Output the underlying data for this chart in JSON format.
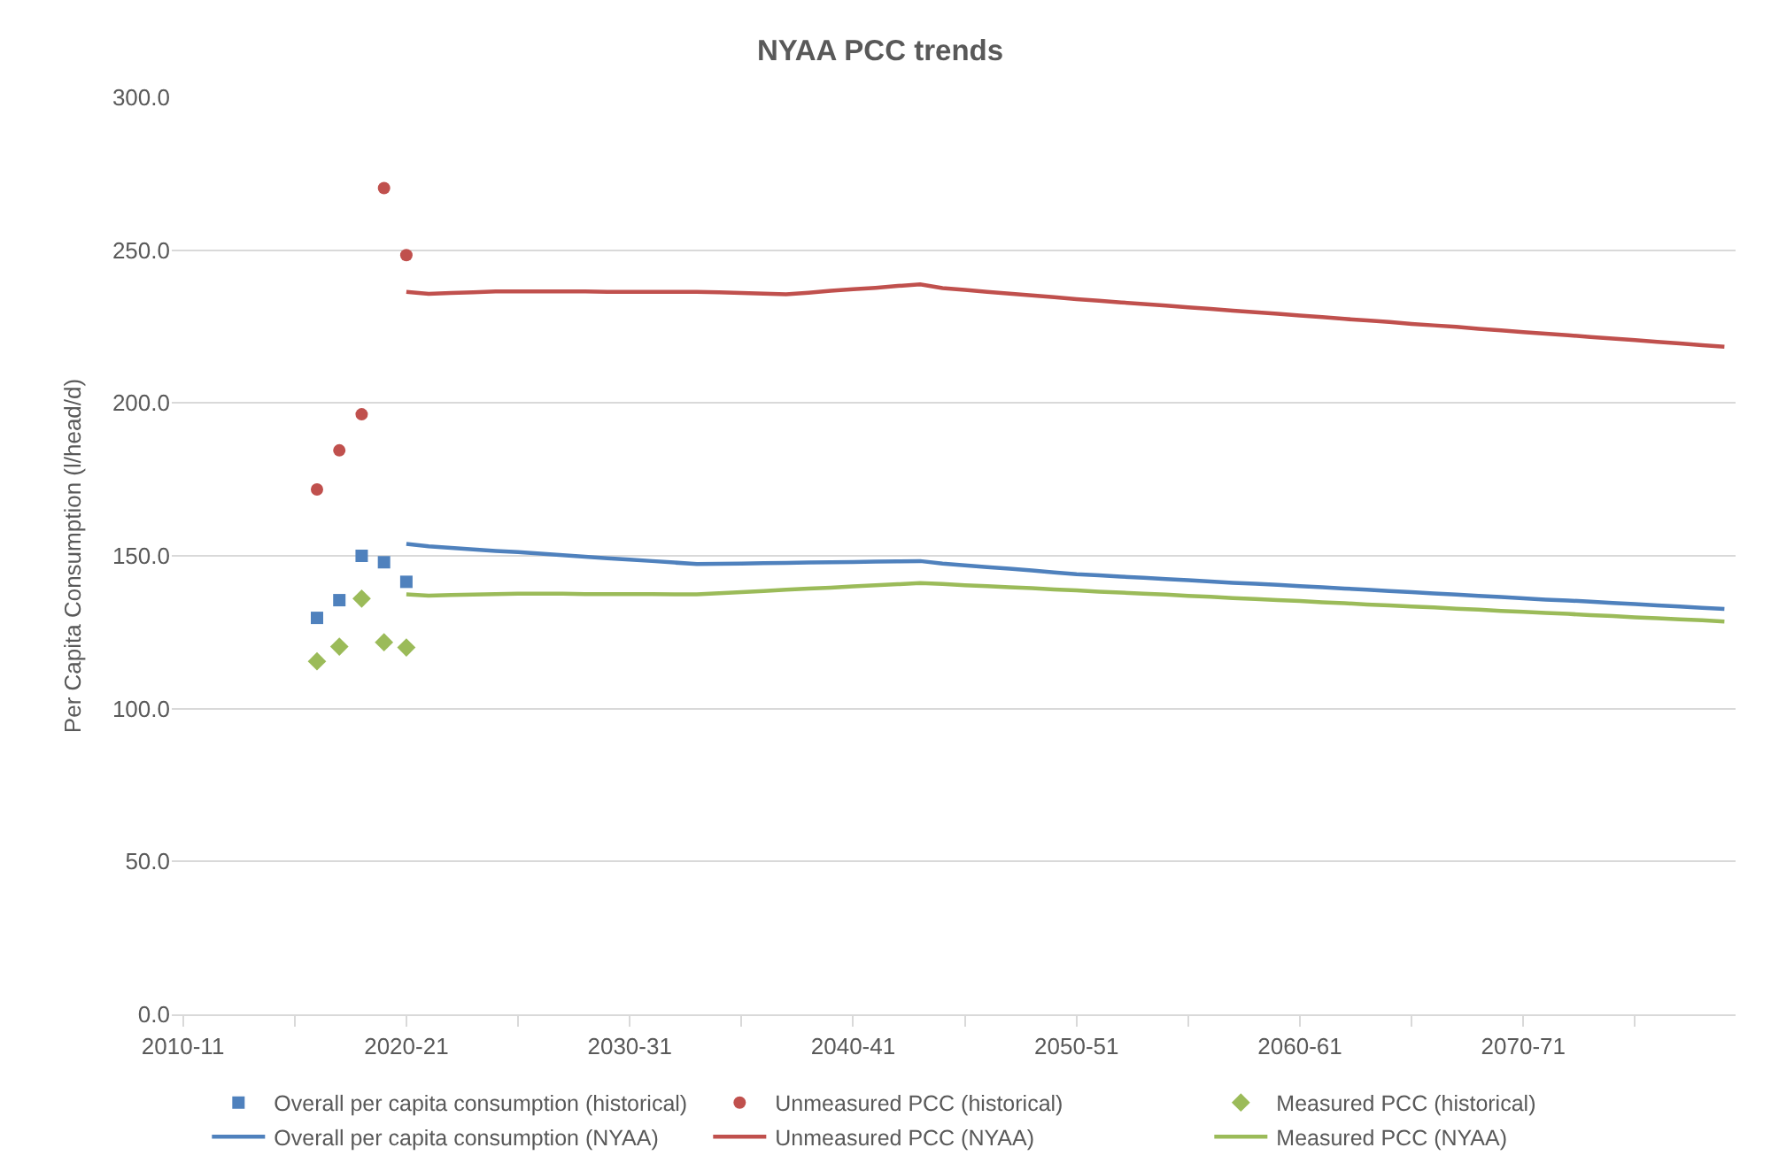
{
  "chart_data": {
    "type": "line",
    "title": "NYAA PCC trends",
    "ylabel": "Per Capita Consumption (l/head/d)",
    "categories": [
      "2010-11",
      null,
      null,
      null,
      null,
      null,
      null,
      null,
      null,
      null,
      "2020-21",
      null,
      null,
      null,
      null,
      null,
      null,
      null,
      null,
      null,
      "2030-31",
      null,
      null,
      null,
      null,
      null,
      null,
      null,
      null,
      null,
      "2040-41",
      null,
      null,
      null,
      null,
      null,
      null,
      null,
      null,
      null,
      "2050-51",
      null,
      null,
      null,
      null,
      null,
      null,
      null,
      null,
      null,
      "2060-61",
      null,
      null,
      null,
      null,
      null,
      null,
      null,
      null,
      null,
      "2070-71",
      null,
      null,
      null,
      null,
      null,
      null,
      null,
      null,
      null
    ],
    "ylim": [
      0,
      300
    ],
    "yticks": [
      {
        "value": 0,
        "label": "0.0"
      },
      {
        "value": 50,
        "label": "50.0"
      },
      {
        "value": 100,
        "label": "100.0"
      },
      {
        "value": 150,
        "label": "150.0"
      },
      {
        "value": 200,
        "label": "200.0"
      },
      {
        "value": 250,
        "label": "250.0"
      },
      {
        "value": 300,
        "label": "300.0"
      }
    ],
    "grid": "y",
    "legend": "bottom",
    "series": [
      {
        "name": "Overall per capita consumption (historical)",
        "type": "scatter",
        "marker": "square",
        "color": "#4f81bd",
        "values": [
          null,
          null,
          null,
          null,
          null,
          null,
          129.7,
          135.5,
          150.0,
          147.9,
          141.5,
          null,
          null,
          null,
          null,
          null,
          null,
          null,
          null,
          null,
          null,
          null,
          null,
          null,
          null,
          null,
          null,
          null,
          null,
          null,
          null,
          null,
          null,
          null,
          null,
          null,
          null,
          null,
          null,
          null,
          null,
          null,
          null,
          null,
          null,
          null,
          null,
          null,
          null,
          null,
          null,
          null,
          null,
          null,
          null,
          null,
          null,
          null,
          null,
          null,
          null,
          null,
          null,
          null,
          null,
          null,
          null,
          null,
          null,
          null
        ]
      },
      {
        "name": "Unmeasured PCC (historical)",
        "type": "scatter",
        "marker": "circle",
        "color": "#c0504d",
        "values": [
          null,
          null,
          null,
          null,
          null,
          null,
          171.7,
          184.5,
          196.3,
          270.3,
          248.4,
          null,
          null,
          null,
          null,
          null,
          null,
          null,
          null,
          null,
          null,
          null,
          null,
          null,
          null,
          null,
          null,
          null,
          null,
          null,
          null,
          null,
          null,
          null,
          null,
          null,
          null,
          null,
          null,
          null,
          null,
          null,
          null,
          null,
          null,
          null,
          null,
          null,
          null,
          null,
          null,
          null,
          null,
          null,
          null,
          null,
          null,
          null,
          null,
          null,
          null,
          null,
          null,
          null,
          null,
          null,
          null,
          null,
          null,
          null
        ]
      },
      {
        "name": "Measured PCC (historical)",
        "type": "scatter",
        "marker": "diamond",
        "color": "#9bbb59",
        "values": [
          null,
          null,
          null,
          null,
          null,
          null,
          115.5,
          120.3,
          136.0,
          121.7,
          120.0,
          null,
          null,
          null,
          null,
          null,
          null,
          null,
          null,
          null,
          null,
          null,
          null,
          null,
          null,
          null,
          null,
          null,
          null,
          null,
          null,
          null,
          null,
          null,
          null,
          null,
          null,
          null,
          null,
          null,
          null,
          null,
          null,
          null,
          null,
          null,
          null,
          null,
          null,
          null,
          null,
          null,
          null,
          null,
          null,
          null,
          null,
          null,
          null,
          null,
          null,
          null,
          null,
          null,
          null,
          null,
          null,
          null,
          null,
          null
        ]
      },
      {
        "name": "Overall per capita consumption (NYAA)",
        "color": "#4f81bd",
        "values": [
          null,
          null,
          null,
          null,
          null,
          null,
          null,
          null,
          null,
          null,
          153.9,
          153.1,
          152.6,
          152.1,
          151.6,
          151.2,
          150.7,
          150.2,
          149.7,
          149.2,
          148.8,
          148.3,
          147.8,
          147.3,
          147.4,
          147.5,
          147.6,
          147.7,
          147.8,
          147.9,
          148.0,
          148.1,
          148.2,
          148.3,
          147.5,
          146.9,
          146.3,
          145.8,
          145.2,
          144.6,
          144.0,
          143.6,
          143.2,
          142.8,
          142.4,
          142.0,
          141.6,
          141.2,
          140.9,
          140.5,
          140.1,
          139.7,
          139.3,
          138.9,
          138.5,
          138.1,
          137.7,
          137.3,
          136.9,
          136.5,
          136.1,
          135.7,
          135.4,
          135.0,
          134.6,
          134.2,
          133.8,
          133.4,
          133.0,
          132.6
        ]
      },
      {
        "name": "Unmeasured PCC (NYAA)",
        "color": "#c0504d",
        "values": [
          null,
          null,
          null,
          null,
          null,
          null,
          null,
          null,
          null,
          null,
          236.4,
          235.7,
          236.0,
          236.2,
          236.5,
          236.5,
          236.5,
          236.5,
          236.5,
          236.4,
          236.4,
          236.4,
          236.4,
          236.4,
          236.2,
          236.0,
          235.8,
          235.6,
          236.1,
          236.7,
          237.2,
          237.7,
          238.3,
          238.8,
          237.6,
          237.0,
          236.4,
          235.8,
          235.2,
          234.6,
          234.0,
          233.5,
          232.9,
          232.4,
          231.9,
          231.3,
          230.8,
          230.2,
          229.7,
          229.2,
          228.6,
          228.1,
          227.5,
          227.0,
          226.5,
          225.9,
          225.4,
          224.9,
          224.3,
          223.8,
          223.2,
          222.7,
          222.2,
          221.6,
          221.1,
          220.6,
          220.0,
          219.5,
          218.9,
          218.4
        ]
      },
      {
        "name": "Measured PCC (NYAA)",
        "color": "#9bbb59",
        "values": [
          null,
          null,
          null,
          null,
          null,
          null,
          null,
          null,
          null,
          null,
          137.4,
          137.0,
          137.2,
          137.3,
          137.5,
          137.6,
          137.6,
          137.6,
          137.5,
          137.5,
          137.5,
          137.5,
          137.4,
          137.4,
          137.8,
          138.1,
          138.5,
          138.9,
          139.3,
          139.6,
          140.0,
          140.4,
          140.7,
          141.1,
          140.8,
          140.4,
          140.1,
          139.7,
          139.4,
          139.0,
          138.7,
          138.3,
          138.0,
          137.6,
          137.3,
          136.9,
          136.6,
          136.2,
          135.9,
          135.5,
          135.2,
          134.8,
          134.5,
          134.1,
          133.8,
          133.4,
          133.1,
          132.7,
          132.4,
          132.0,
          131.7,
          131.3,
          131.0,
          130.6,
          130.3,
          129.9,
          129.6,
          129.2,
          128.9,
          128.5
        ]
      }
    ]
  }
}
